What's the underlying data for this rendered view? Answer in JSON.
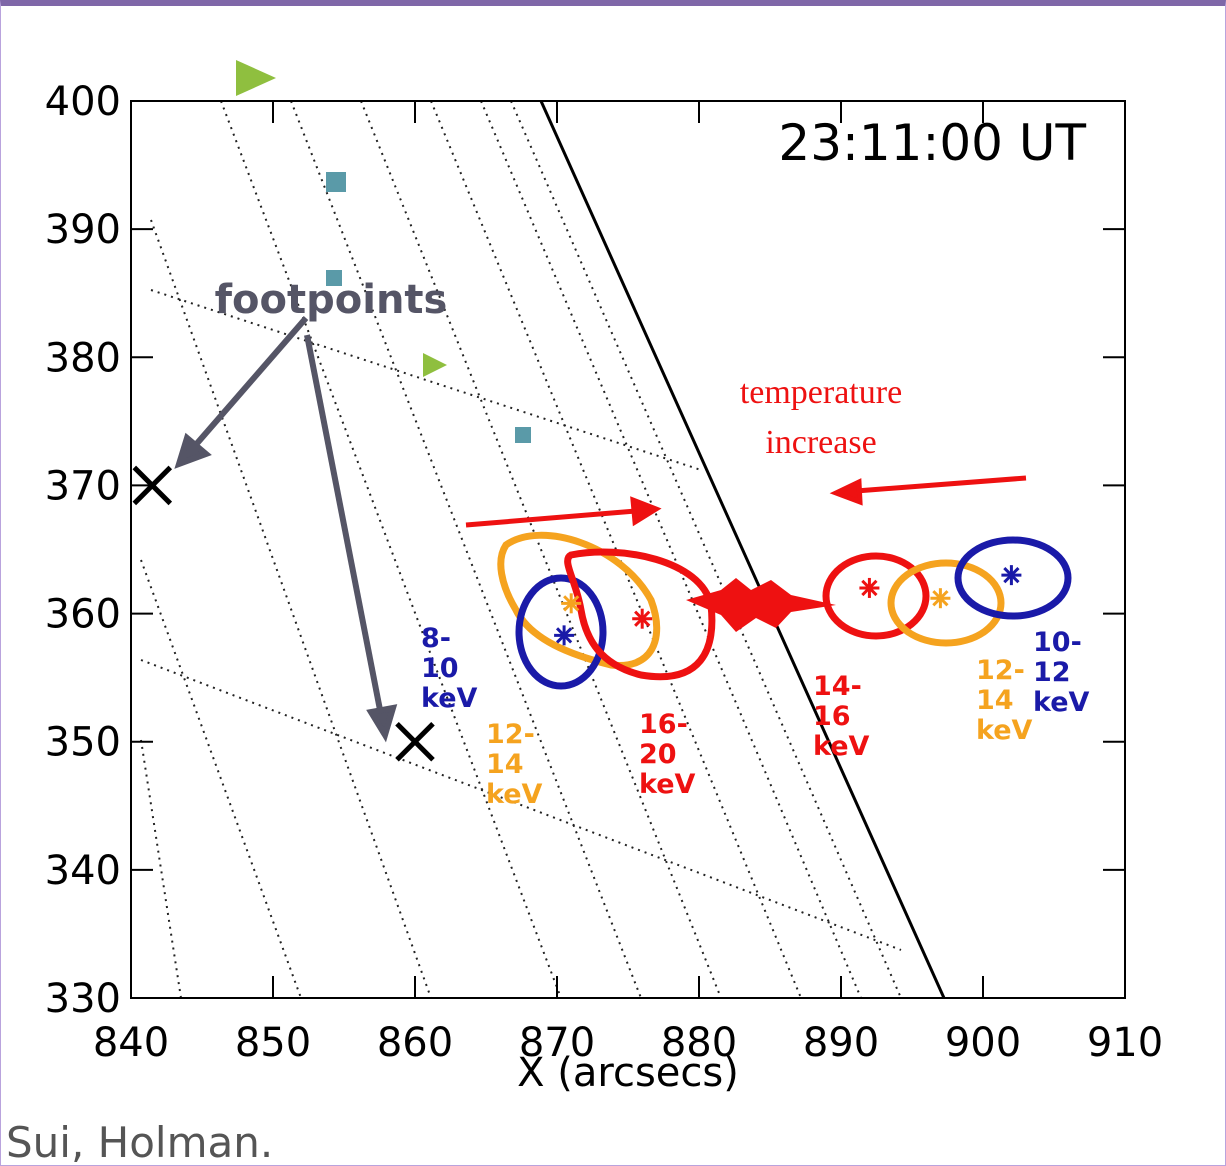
{
  "chart_data": {
    "type": "scatter",
    "title": "23:11:00 UT",
    "xlabel": "X (arcsecs)",
    "xlim": [
      840,
      910
    ],
    "ylim": [
      330,
      400
    ],
    "xticks": [
      840,
      850,
      860,
      870,
      880,
      890,
      900,
      910
    ],
    "yticks": [
      330,
      340,
      350,
      360,
      370,
      380,
      390,
      400
    ],
    "series": [
      {
        "name": "8-10 keV",
        "color": "#1a1aa8",
        "x": [
          870.5
        ],
        "y": [
          358.3
        ]
      },
      {
        "name": "12-14 keV",
        "color": "#f5a31f",
        "x": [
          871
        ],
        "y": [
          360.8
        ]
      },
      {
        "name": "16-20 keV",
        "color": "#ee1111",
        "x": [
          876
        ],
        "y": [
          359.6
        ]
      },
      {
        "name": "14-16 keV",
        "color": "#ee1111",
        "x": [
          892
        ],
        "y": [
          362
        ]
      },
      {
        "name": "12-14 keV",
        "color": "#f5a31f",
        "x": [
          897
        ],
        "y": [
          361.2
        ]
      },
      {
        "name": "10-12 keV",
        "color": "#1a1aa8",
        "x": [
          902
        ],
        "y": [
          363
        ]
      }
    ],
    "footpoints": {
      "label": "footpoints",
      "x": [
        841.5,
        860
      ],
      "y": [
        370,
        350
      ]
    },
    "annotation": "temperature increase"
  },
  "footer": "Sui, Holman."
}
